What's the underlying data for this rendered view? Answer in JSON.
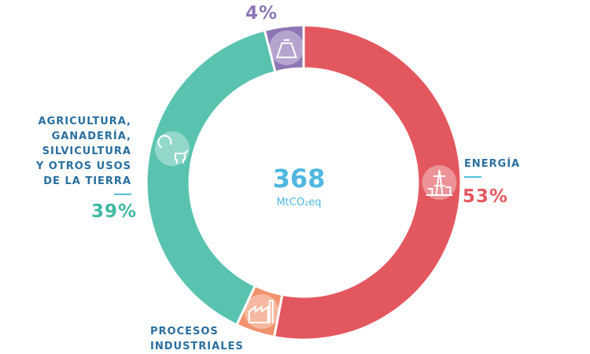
{
  "chart_data": {
    "type": "pie",
    "style": "donut",
    "center": {
      "value": "368",
      "unit": "MtCO₂eq"
    },
    "slices": [
      {
        "label": "ENERGÍA",
        "percent_text": "53%",
        "value": 53,
        "color": "#e3585f",
        "icon": "oil-tower-icon"
      },
      {
        "label": "PROCESOS INDUSTRIALES",
        "percent_text": "",
        "value": 4,
        "color": "#f2926e",
        "icon": "factory-icon"
      },
      {
        "label": "AGRICULTURA, GANADERÍA, SILVICULTURA Y OTROS USOS DE LA TIERRA",
        "percent_text": "39%",
        "value": 39,
        "color": "#5ac3af",
        "icon": "cow-tree-icon"
      },
      {
        "label": "",
        "percent_text": "4%",
        "value": 4,
        "color": "#8e76b4",
        "icon": "waste-bag-icon"
      }
    ]
  },
  "labels": {
    "agri_lines": [
      "AGRICULTURA,",
      "GANADERÍA,",
      "SILVICULTURA",
      "Y OTROS USOS",
      "DE LA TIERRA"
    ],
    "agri_pct": "39%",
    "energia": "ENERGÍA",
    "energia_pct": "53%",
    "top_pct": "4%",
    "procesos_lines": [
      "PROCESOS",
      "INDUSTRIALES"
    ]
  }
}
